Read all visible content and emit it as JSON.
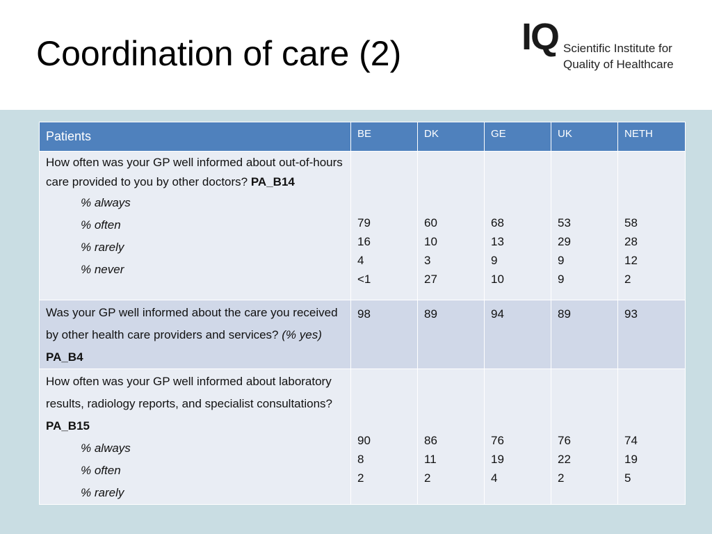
{
  "header": {
    "title": "Coordination of care (2)"
  },
  "logo": {
    "mark": "IQ",
    "line1": "Scientific Institute for",
    "line2": "Quality of Healthcare"
  },
  "table": {
    "columns": [
      "Patients",
      "BE",
      "DK",
      "GE",
      "UK",
      "NETH"
    ],
    "rows": [
      {
        "question": "How often was your GP well informed about out-of-hours care provided to you by other doctors?",
        "code": "PA_B14",
        "items": [
          "% always",
          "% often",
          "% rarely",
          "% never"
        ],
        "values": [
          [
            "79",
            "16",
            "4",
            "<1"
          ],
          [
            "60",
            "10",
            "3",
            "27"
          ],
          [
            "68",
            "13",
            "9",
            "10"
          ],
          [
            "53",
            "29",
            "9",
            "9"
          ],
          [
            "58",
            "28",
            "12",
            "2"
          ]
        ]
      },
      {
        "question": "Was your GP well informed about the care you received by other health care providers and services?",
        "qualifier": "(% yes)",
        "code": "PA_B4",
        "values": [
          [
            "98"
          ],
          [
            "89"
          ],
          [
            "94"
          ],
          [
            "89"
          ],
          [
            "93"
          ]
        ]
      },
      {
        "question": "How often was your GP well informed about laboratory results, radiology reports, and specialist consultations?",
        "code": "PA_B15",
        "items": [
          "% always",
          "% often",
          "% rarely"
        ],
        "values": [
          [
            "90",
            "8",
            "2"
          ],
          [
            "86",
            "11",
            "2"
          ],
          [
            "76",
            "19",
            "4"
          ],
          [
            "76",
            "22",
            "2"
          ],
          [
            "74",
            "19",
            "5"
          ]
        ]
      }
    ]
  }
}
